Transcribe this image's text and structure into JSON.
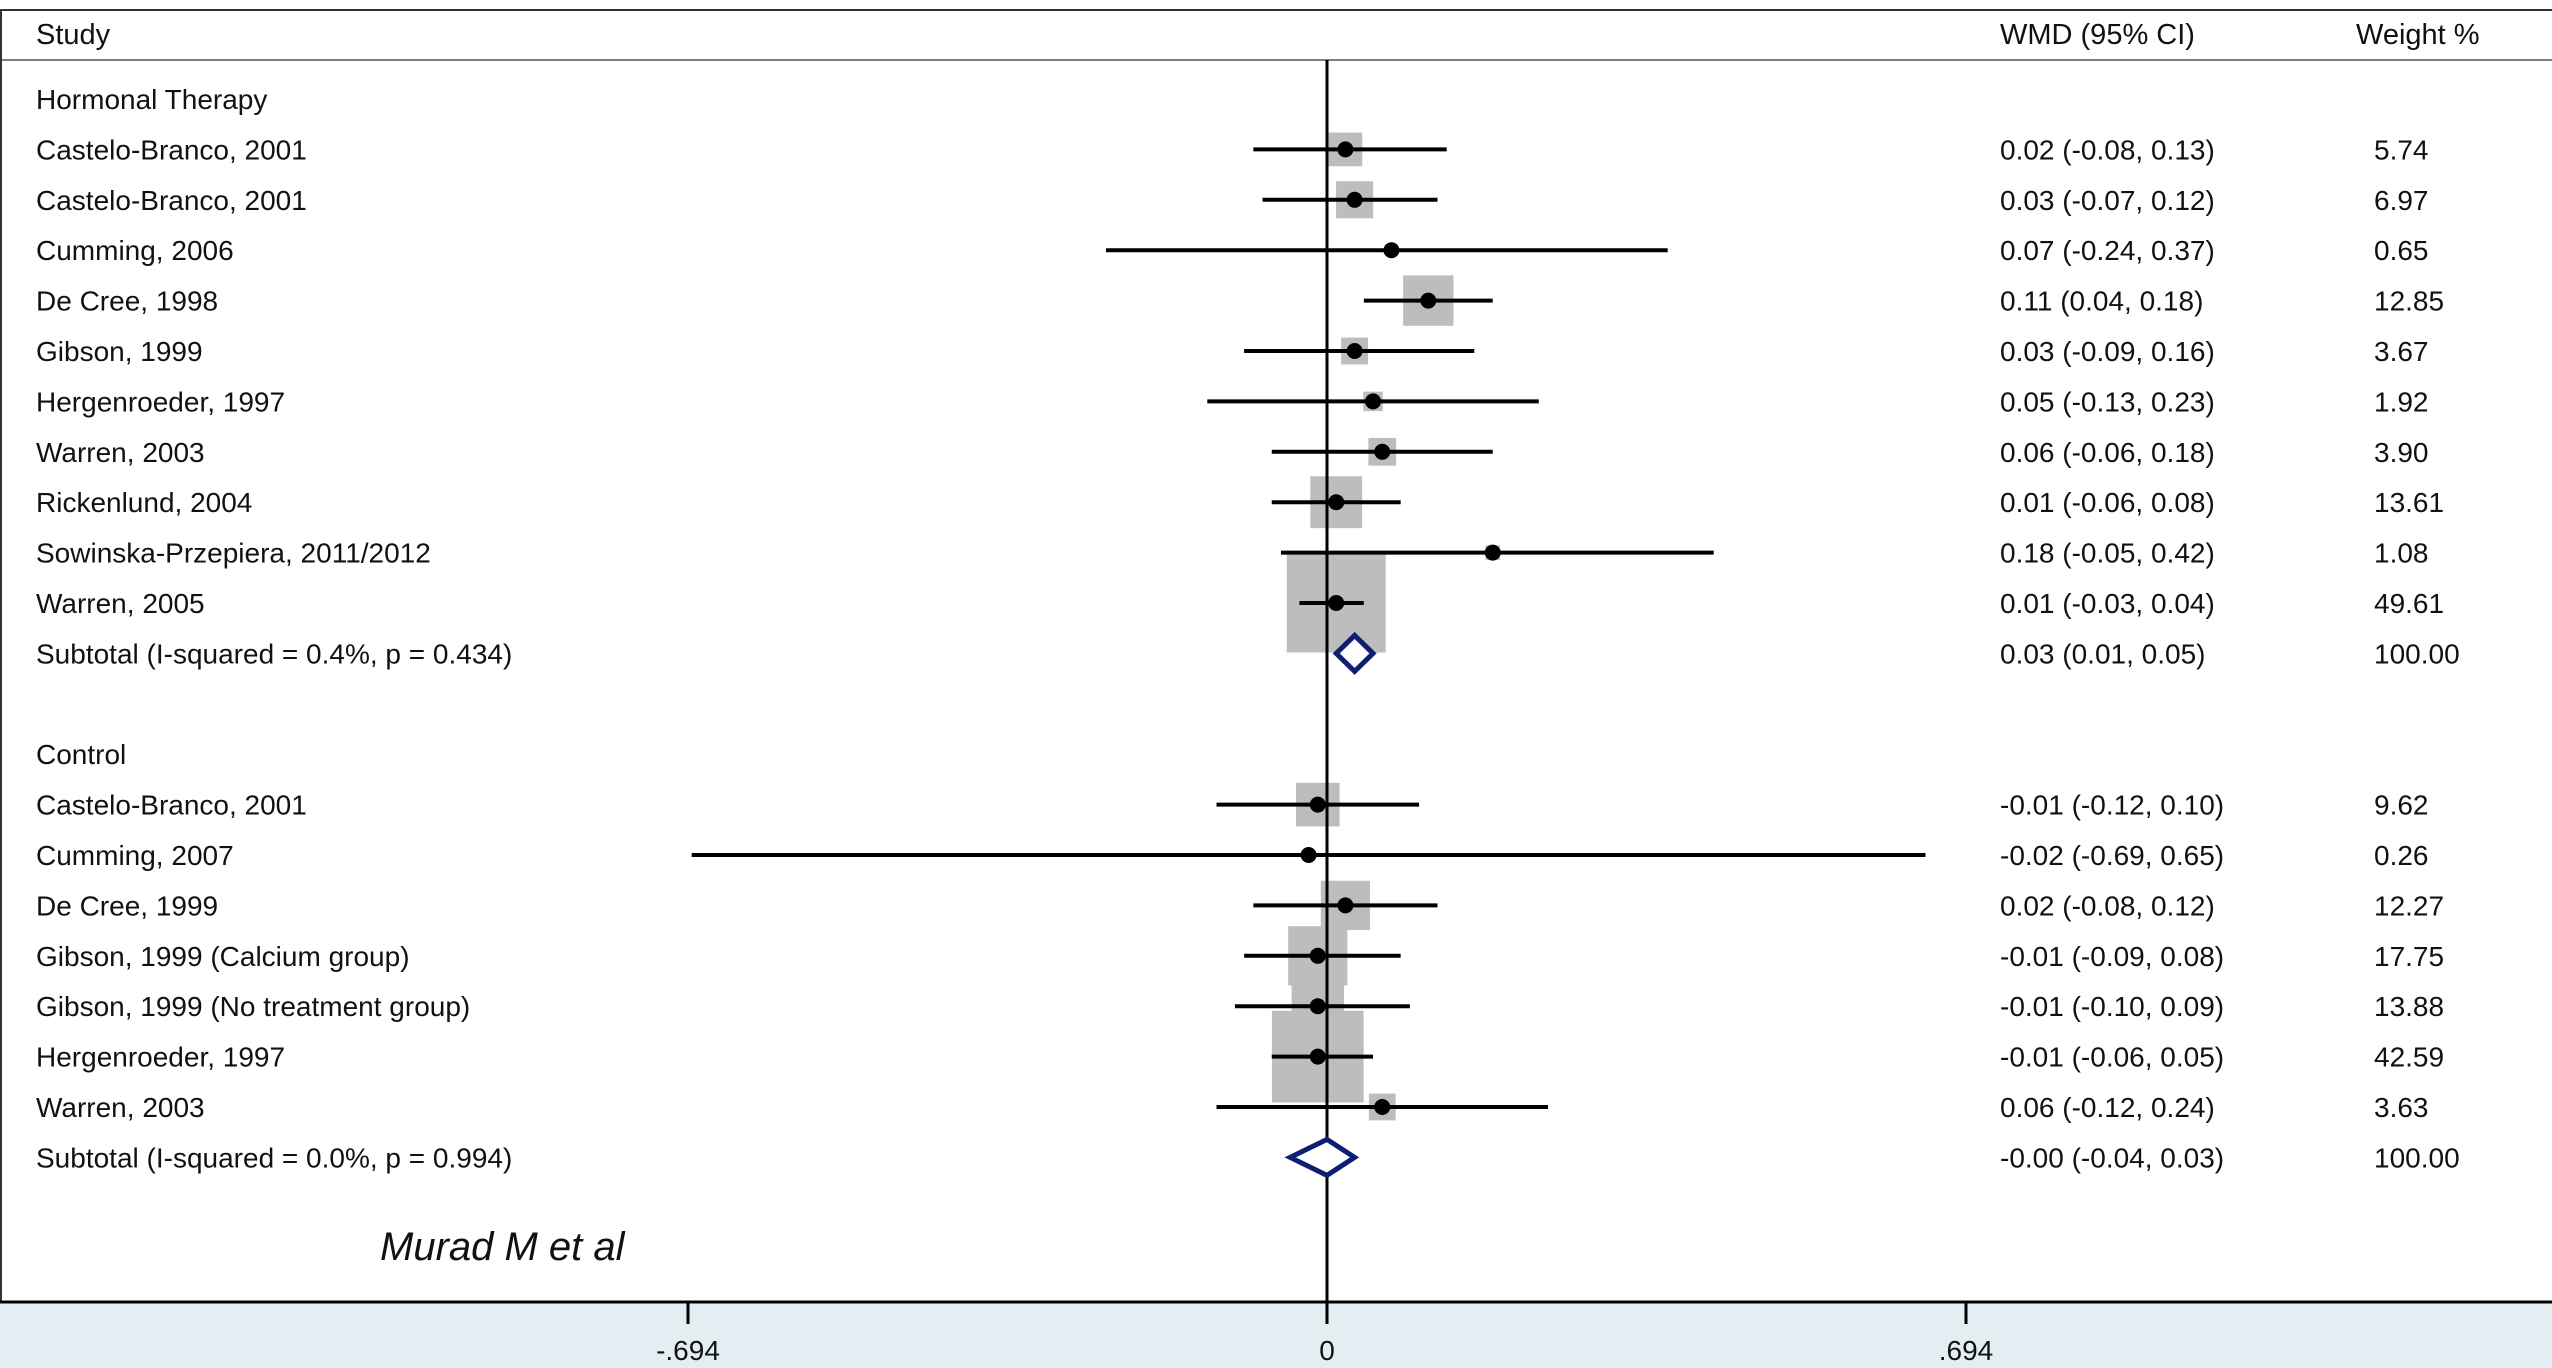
{
  "headers": {
    "study": "Study",
    "effect": "WMD (95% CI)",
    "weight": "Weight %"
  },
  "annotation": "Murad M et al",
  "colors": {
    "box": "#bdbdbd",
    "line": "#000000",
    "diamond": "#0d1f6e",
    "axis_band": "#e3eef2"
  },
  "chart_data": {
    "type": "forest",
    "xlabel": "",
    "ylabel": "",
    "x_ticks": [
      {
        "value": -0.694,
        "label": "-.694"
      },
      {
        "value": 0,
        "label": "0"
      },
      {
        "value": 0.694,
        "label": ".694"
      }
    ],
    "xlim": [
      -0.694,
      0.694
    ],
    "reference_line": 0,
    "rows": [
      {
        "kind": "group",
        "label": "Hormonal Therapy"
      },
      {
        "kind": "study",
        "label": "Castelo-Branco, 2001",
        "est": 0.02,
        "lo": -0.08,
        "hi": 0.13,
        "wmd": "0.02 (-0.08, 0.13)",
        "weight": 5.74,
        "weight_label": "5.74"
      },
      {
        "kind": "study",
        "label": "Castelo-Branco, 2001",
        "est": 0.03,
        "lo": -0.07,
        "hi": 0.12,
        "wmd": "0.03 (-0.07, 0.12)",
        "weight": 6.97,
        "weight_label": "6.97"
      },
      {
        "kind": "study",
        "label": "Cumming, 2006",
        "est": 0.07,
        "lo": -0.24,
        "hi": 0.37,
        "wmd": "0.07 (-0.24, 0.37)",
        "weight": 0.65,
        "weight_label": "0.65"
      },
      {
        "kind": "study",
        "label": "De Cree, 1998",
        "est": 0.11,
        "lo": 0.04,
        "hi": 0.18,
        "wmd": "0.11 (0.04, 0.18)",
        "weight": 12.85,
        "weight_label": "12.85"
      },
      {
        "kind": "study",
        "label": "Gibson, 1999",
        "est": 0.03,
        "lo": -0.09,
        "hi": 0.16,
        "wmd": "0.03 (-0.09, 0.16)",
        "weight": 3.67,
        "weight_label": "3.67"
      },
      {
        "kind": "study",
        "label": "Hergenroeder, 1997",
        "est": 0.05,
        "lo": -0.13,
        "hi": 0.23,
        "wmd": "0.05 (-0.13, 0.23)",
        "weight": 1.92,
        "weight_label": "1.92"
      },
      {
        "kind": "study",
        "label": "Warren, 2003",
        "est": 0.06,
        "lo": -0.06,
        "hi": 0.18,
        "wmd": "0.06 (-0.06, 0.18)",
        "weight": 3.9,
        "weight_label": "3.90"
      },
      {
        "kind": "study",
        "label": "Rickenlund, 2004",
        "est": 0.01,
        "lo": -0.06,
        "hi": 0.08,
        "wmd": "0.01 (-0.06, 0.08)",
        "weight": 13.61,
        "weight_label": "13.61"
      },
      {
        "kind": "study",
        "label": "Sowinska-Przepiera, 2011/2012",
        "est": 0.18,
        "lo": -0.05,
        "hi": 0.42,
        "wmd": "0.18 (-0.05, 0.42)",
        "weight": 1.08,
        "weight_label": "1.08"
      },
      {
        "kind": "study",
        "label": "Warren, 2005",
        "est": 0.01,
        "lo": -0.03,
        "hi": 0.04,
        "wmd": "0.01 (-0.03, 0.04)",
        "weight": 49.61,
        "weight_label": "49.61"
      },
      {
        "kind": "subtotal",
        "label": "Subtotal  (I-squared = 0.4%, p = 0.434)",
        "est": 0.03,
        "lo": 0.01,
        "hi": 0.05,
        "wmd": "0.03 (0.01, 0.05)",
        "weight_label": "100.00"
      },
      {
        "kind": "spacer"
      },
      {
        "kind": "group",
        "label": "Control"
      },
      {
        "kind": "study",
        "label": "Castelo-Branco, 2001",
        "est": -0.01,
        "lo": -0.12,
        "hi": 0.1,
        "wmd": "-0.01 (-0.12, 0.10)",
        "weight": 9.62,
        "weight_label": "9.62"
      },
      {
        "kind": "study",
        "label": "Cumming, 2007",
        "est": -0.02,
        "lo": -0.69,
        "hi": 0.65,
        "wmd": "-0.02 (-0.69, 0.65)",
        "weight": 0.26,
        "weight_label": "0.26"
      },
      {
        "kind": "study",
        "label": "De Cree, 1999",
        "est": 0.02,
        "lo": -0.08,
        "hi": 0.12,
        "wmd": "0.02 (-0.08, 0.12)",
        "weight": 12.27,
        "weight_label": "12.27"
      },
      {
        "kind": "study",
        "label": "Gibson, 1999 (Calcium group)",
        "est": -0.01,
        "lo": -0.09,
        "hi": 0.08,
        "wmd": "-0.01 (-0.09, 0.08)",
        "weight": 17.75,
        "weight_label": "17.75"
      },
      {
        "kind": "study",
        "label": "Gibson, 1999 (No treatment group)",
        "est": -0.01,
        "lo": -0.1,
        "hi": 0.09,
        "wmd": "-0.01 (-0.10, 0.09)",
        "weight": 13.88,
        "weight_label": "13.88"
      },
      {
        "kind": "study",
        "label": "Hergenroeder, 1997",
        "est": -0.01,
        "lo": -0.06,
        "hi": 0.05,
        "wmd": "-0.01 (-0.06, 0.05)",
        "weight": 42.59,
        "weight_label": "42.59"
      },
      {
        "kind": "study",
        "label": "Warren, 2003",
        "est": 0.06,
        "lo": -0.12,
        "hi": 0.24,
        "wmd": "0.06 (-0.12, 0.24)",
        "weight": 3.63,
        "weight_label": "3.63"
      },
      {
        "kind": "subtotal",
        "label": "Subtotal  (I-squared = 0.0%, p = 0.994)",
        "est": -0.0,
        "lo": -0.04,
        "hi": 0.03,
        "wmd": "-0.00 (-0.04, 0.03)",
        "weight_label": "100.00"
      }
    ]
  }
}
